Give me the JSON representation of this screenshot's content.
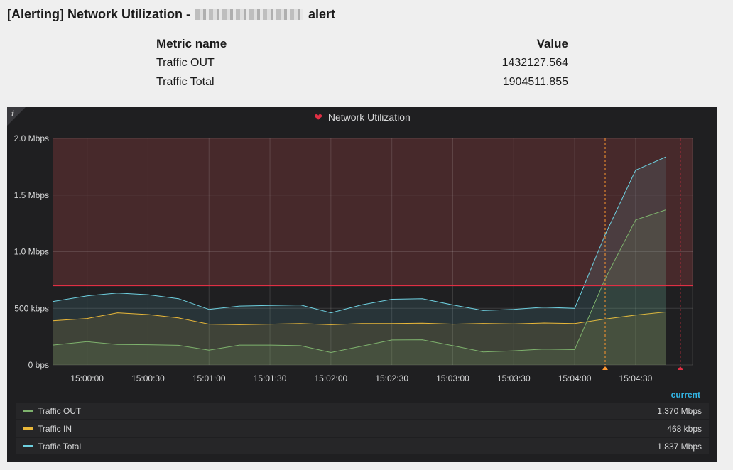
{
  "page": {
    "title_prefix": "[Alerting] Network Utilization -",
    "title_suffix": "alert"
  },
  "metrics_table": {
    "header_name": "Metric name",
    "header_value": "Value",
    "rows": [
      {
        "name": "Traffic OUT",
        "value": "1432127.564"
      },
      {
        "name": "Traffic Total",
        "value": "1904511.855"
      }
    ]
  },
  "panel": {
    "title": "Network Utilization",
    "info_icon": "i",
    "state_icon": "broken-heart-icon",
    "legend_header": "current",
    "legend": [
      {
        "name": "Traffic OUT",
        "current": "1.370 Mbps",
        "color": "#7eb26d"
      },
      {
        "name": "Traffic IN",
        "current": "468 kbps",
        "color": "#eab839"
      },
      {
        "name": "Traffic Total",
        "current": "1.837 Mbps",
        "color": "#6ed0e0"
      }
    ]
  },
  "chart_data": {
    "type": "area",
    "title": "Network Utilization",
    "y_unit": "bps",
    "ylim": [
      0,
      2000000
    ],
    "y_ticks": [
      {
        "value": 0,
        "label": "0 bps"
      },
      {
        "value": 500000,
        "label": "500 kbps"
      },
      {
        "value": 1000000,
        "label": "1.0 Mbps"
      },
      {
        "value": 1500000,
        "label": "1.5 Mbps"
      },
      {
        "value": 2000000,
        "label": "2.0 Mbps"
      }
    ],
    "xlim": [
      "14:59:43",
      "15:04:58"
    ],
    "x_ticks": [
      "15:00:00",
      "15:00:30",
      "15:01:00",
      "15:01:30",
      "15:02:00",
      "15:02:30",
      "15:03:00",
      "15:03:30",
      "15:04:00",
      "15:04:30"
    ],
    "x": [
      "14:59:43",
      "15:00:00",
      "15:00:15",
      "15:00:30",
      "15:00:45",
      "15:01:00",
      "15:01:15",
      "15:01:30",
      "15:01:45",
      "15:02:00",
      "15:02:15",
      "15:02:30",
      "15:02:45",
      "15:03:00",
      "15:03:15",
      "15:03:30",
      "15:03:45",
      "15:04:00",
      "15:04:15",
      "15:04:30",
      "15:04:45"
    ],
    "series": [
      {
        "name": "Traffic Total",
        "color": "#6ed0e0",
        "values": [
          560000,
          610000,
          635000,
          620000,
          585000,
          490000,
          520000,
          525000,
          530000,
          460000,
          530000,
          580000,
          585000,
          530000,
          480000,
          490000,
          510000,
          500000,
          1150000,
          1720000,
          1837000
        ]
      },
      {
        "name": "Traffic IN",
        "color": "#eab839",
        "values": [
          390000,
          410000,
          460000,
          445000,
          415000,
          360000,
          355000,
          360000,
          365000,
          355000,
          365000,
          365000,
          368000,
          360000,
          366000,
          362000,
          370000,
          365000,
          405000,
          440000,
          468000
        ]
      },
      {
        "name": "Traffic OUT",
        "color": "#7eb26d",
        "values": [
          175000,
          205000,
          180000,
          178000,
          173000,
          130000,
          175000,
          175000,
          170000,
          110000,
          165000,
          220000,
          222000,
          170000,
          115000,
          125000,
          140000,
          135000,
          760000,
          1280000,
          1370000
        ]
      }
    ],
    "threshold": {
      "value": 700000,
      "color": "#e02f44"
    },
    "annotations": [
      {
        "time": "15:04:15",
        "color": "#ff9830"
      },
      {
        "time": "15:04:52",
        "color": "#e02f44"
      }
    ],
    "grid": true,
    "legend": "bottom"
  }
}
